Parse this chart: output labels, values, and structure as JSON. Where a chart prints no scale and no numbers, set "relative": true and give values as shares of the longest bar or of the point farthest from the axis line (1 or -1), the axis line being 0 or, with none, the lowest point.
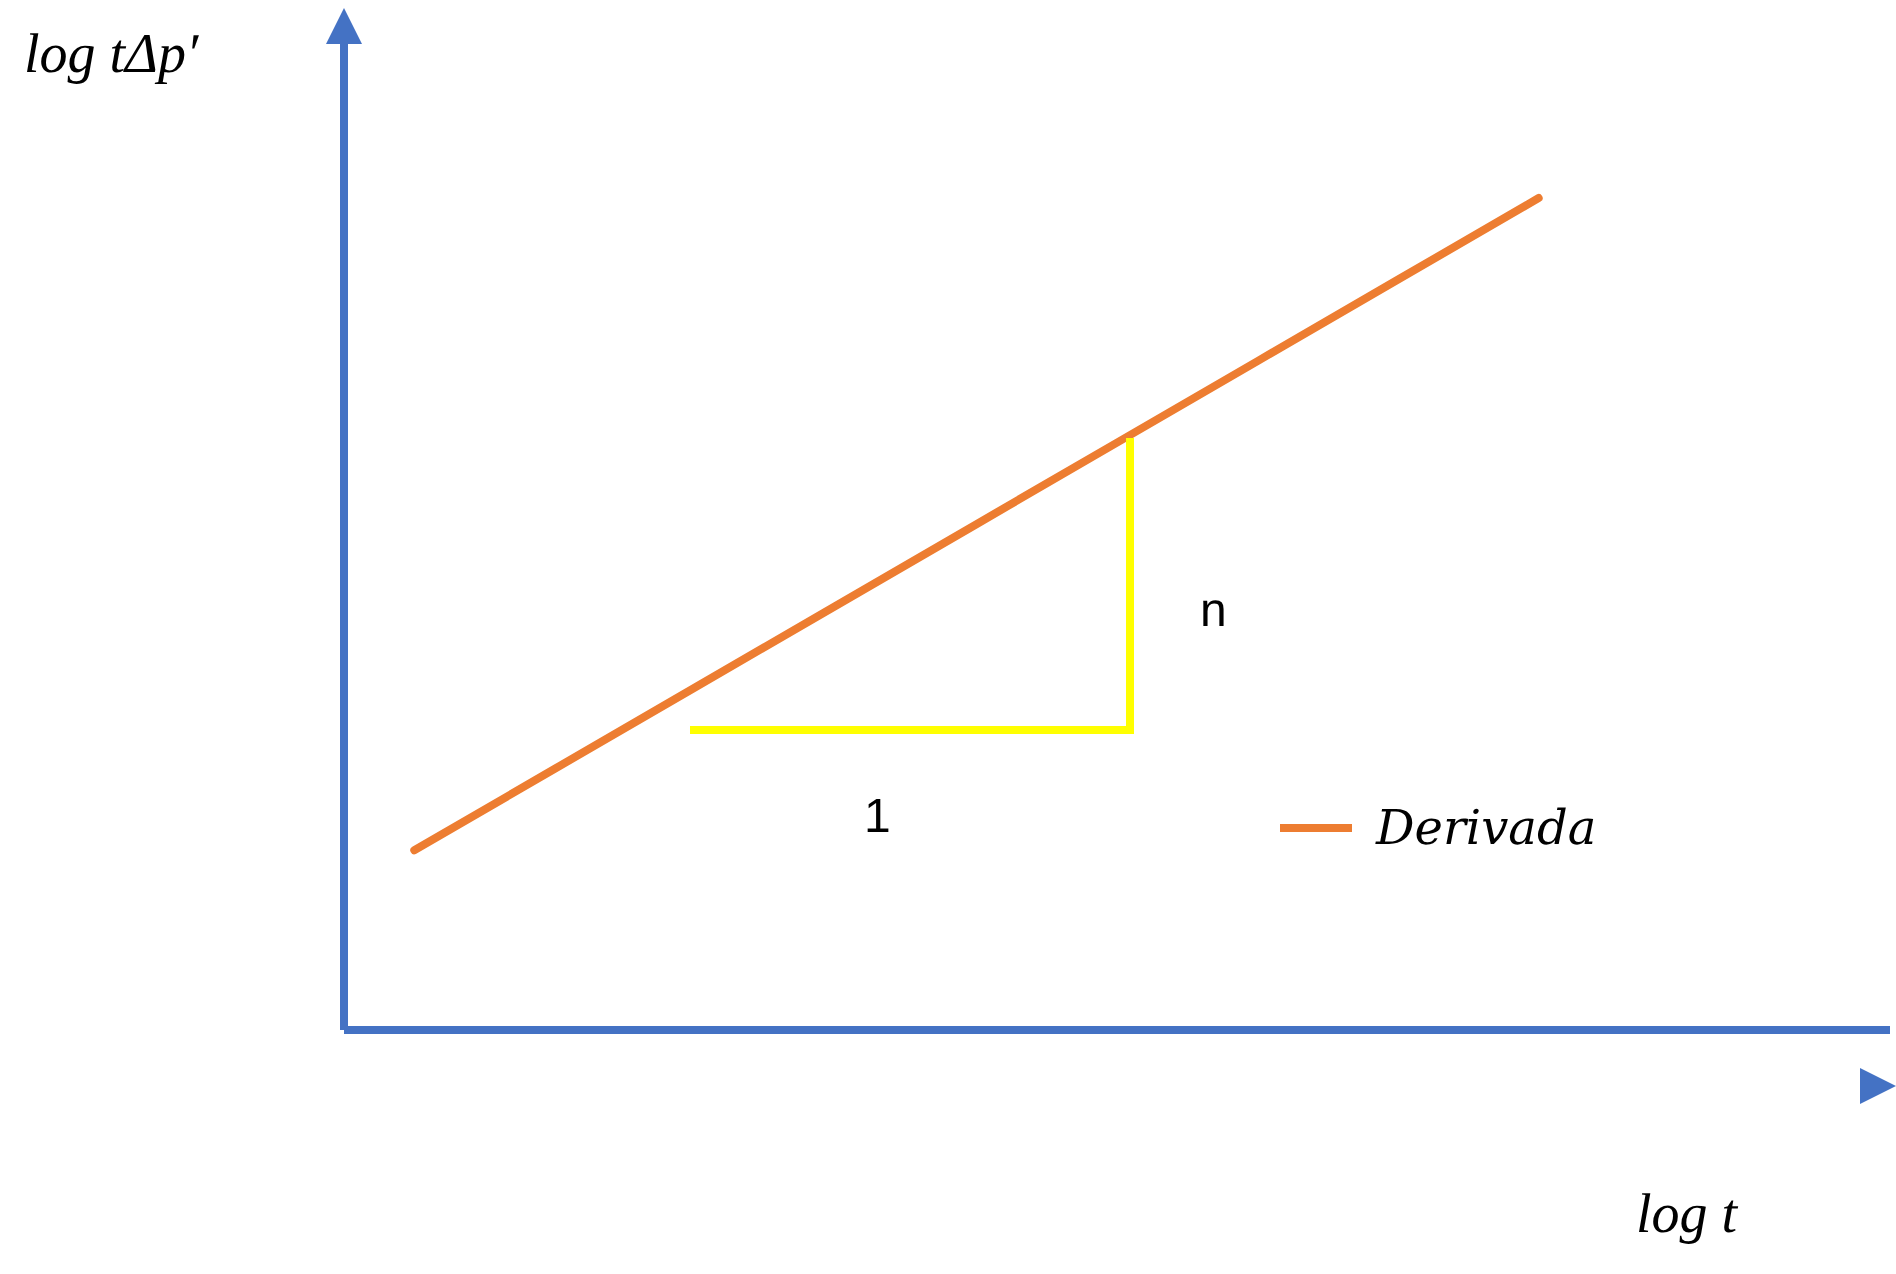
{
  "chart_data": {
    "type": "line",
    "relative": true,
    "xlabel": "log t",
    "ylabel": "log tΔp′",
    "categories": [
      null,
      null,
      null,
      null,
      null,
      null,
      null,
      null,
      null,
      null,
      null
    ],
    "legend": "right",
    "grid": false,
    "marker": "none",
    "line_style": "solid",
    "series": [
      {
        "name": "Derivada",
        "color": "#ed7d31",
        "values": [
          0.216,
          0.314,
          0.412,
          0.51,
          0.608,
          0.706,
          0.804,
          0.902,
          1,
          null,
          null
        ]
      }
    ],
    "annotations": [
      "1",
      "n"
    ]
  }
}
